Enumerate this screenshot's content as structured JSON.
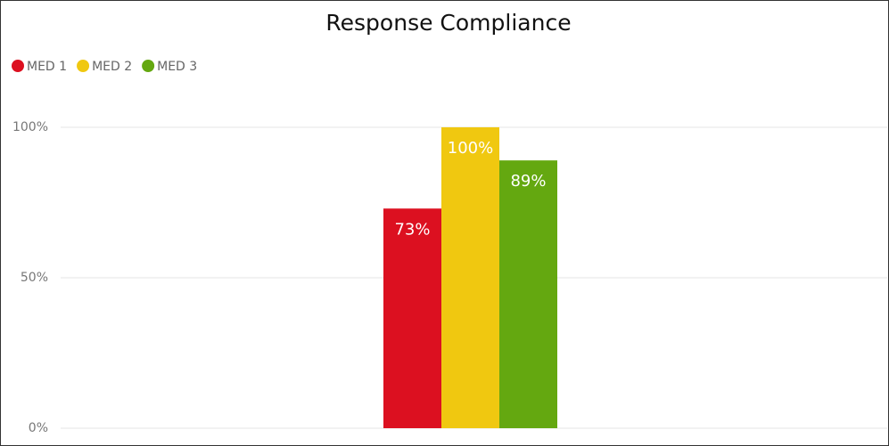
{
  "chart_data": {
    "type": "bar",
    "title": "Response Compliance",
    "categories": [
      null
    ],
    "series": [
      {
        "name": "MED 1",
        "color": "#dc1020",
        "values": [
          73
        ],
        "value_labels": [
          "73%"
        ]
      },
      {
        "name": "MED 2",
        "color": "#f0c810",
        "values": [
          100
        ],
        "value_labels": [
          "100%"
        ]
      },
      {
        "name": "MED 3",
        "color": "#64a810",
        "values": [
          89
        ],
        "value_labels": [
          "89%"
        ]
      }
    ],
    "ylim": [
      0,
      100
    ],
    "yticks": [
      {
        "value": 0,
        "label": "0%"
      },
      {
        "value": 50,
        "label": "50%"
      },
      {
        "value": 100,
        "label": "100%"
      }
    ],
    "grid": true,
    "legend": "top-left"
  }
}
